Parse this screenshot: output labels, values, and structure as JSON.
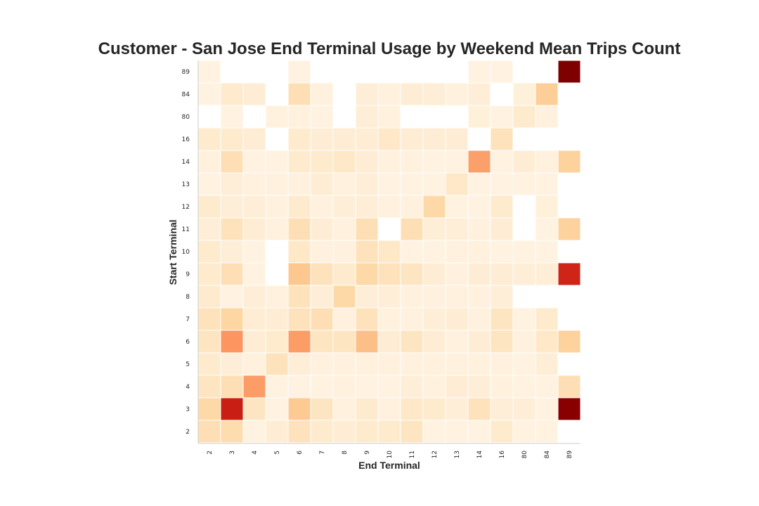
{
  "chart_data": {
    "type": "heatmap",
    "title": "Customer - San Jose End Terminal Usage by Weekend Mean Trips Count",
    "xlabel": "End Terminal",
    "ylabel": "Start Terminal",
    "x_categories": [
      "2",
      "3",
      "4",
      "5",
      "6",
      "7",
      "8",
      "9",
      "10",
      "11",
      "12",
      "13",
      "14",
      "16",
      "80",
      "84",
      "89"
    ],
    "y_categories": [
      "89",
      "84",
      "80",
      "16",
      "14",
      "13",
      "12",
      "11",
      "10",
      "9",
      "8",
      "7",
      "6",
      "5",
      "4",
      "3",
      "2"
    ],
    "colormap": "OrRd",
    "grid": false,
    "values": [
      [
        0.04,
        null,
        null,
        null,
        0.04,
        null,
        null,
        null,
        null,
        null,
        null,
        null,
        0.04,
        0.04,
        null,
        null,
        1.0
      ],
      [
        0.04,
        0.1,
        0.08,
        null,
        0.18,
        0.05,
        null,
        0.07,
        0.05,
        0.08,
        0.07,
        0.05,
        0.07,
        null,
        0.06,
        0.28,
        null
      ],
      [
        null,
        0.04,
        null,
        0.05,
        0.05,
        0.04,
        null,
        0.07,
        0.05,
        null,
        null,
        null,
        0.06,
        0.04,
        0.1,
        0.05,
        null
      ],
      [
        0.1,
        0.1,
        0.08,
        null,
        0.1,
        0.08,
        0.08,
        0.08,
        0.12,
        0.08,
        0.08,
        0.08,
        null,
        0.16,
        null,
        null,
        null
      ],
      [
        0.05,
        0.18,
        0.04,
        0.04,
        0.1,
        0.1,
        0.12,
        0.08,
        0.05,
        0.05,
        0.04,
        0.04,
        0.45,
        0.04,
        0.08,
        0.05,
        0.26
      ],
      [
        0.04,
        0.07,
        0.05,
        0.05,
        0.05,
        0.08,
        0.05,
        0.07,
        0.04,
        0.04,
        0.04,
        0.12,
        0.04,
        0.04,
        0.04,
        0.04,
        null
      ],
      [
        0.1,
        0.07,
        0.07,
        0.05,
        0.1,
        0.05,
        0.07,
        0.07,
        0.05,
        0.05,
        0.22,
        0.04,
        0.04,
        0.1,
        null,
        0.06,
        null
      ],
      [
        0.07,
        0.16,
        0.08,
        0.05,
        0.18,
        0.08,
        0.05,
        0.18,
        null,
        0.18,
        0.07,
        0.07,
        0.05,
        0.08,
        null,
        0.04,
        0.26
      ],
      [
        0.1,
        0.07,
        0.04,
        null,
        0.12,
        0.05,
        0.05,
        0.16,
        0.12,
        0.04,
        0.04,
        0.05,
        0.05,
        0.04,
        0.04,
        0.04,
        null
      ],
      [
        0.1,
        0.18,
        0.04,
        null,
        0.32,
        0.16,
        0.1,
        0.22,
        0.16,
        0.14,
        0.08,
        0.05,
        0.08,
        0.08,
        0.07,
        0.07,
        0.78
      ],
      [
        0.1,
        0.04,
        0.07,
        0.05,
        0.16,
        0.07,
        0.22,
        0.07,
        0.07,
        0.05,
        0.05,
        0.05,
        0.05,
        0.07,
        null,
        null,
        null
      ],
      [
        0.16,
        0.24,
        0.08,
        0.08,
        0.16,
        0.18,
        0.05,
        0.16,
        0.05,
        0.05,
        0.07,
        0.08,
        0.05,
        0.14,
        0.04,
        0.1,
        null
      ],
      [
        0.14,
        0.48,
        0.08,
        0.1,
        0.46,
        0.14,
        0.14,
        0.36,
        0.08,
        0.14,
        0.08,
        0.05,
        0.08,
        0.14,
        0.05,
        0.12,
        0.26
      ],
      [
        0.1,
        0.07,
        0.05,
        0.16,
        0.07,
        0.05,
        0.05,
        0.05,
        0.05,
        0.05,
        0.05,
        0.05,
        0.05,
        0.05,
        0.04,
        0.07,
        null
      ],
      [
        0.14,
        0.18,
        0.46,
        0.04,
        0.04,
        0.04,
        0.05,
        0.04,
        0.04,
        0.07,
        0.05,
        0.08,
        0.07,
        0.05,
        0.04,
        0.04,
        0.18
      ],
      [
        0.22,
        0.8,
        0.14,
        0.04,
        0.3,
        0.14,
        0.05,
        0.1,
        0.05,
        0.12,
        0.1,
        0.07,
        0.16,
        0.07,
        0.07,
        0.04,
        0.98
      ],
      [
        0.18,
        0.2,
        0.04,
        0.08,
        0.16,
        0.1,
        0.08,
        0.1,
        0.1,
        0.14,
        0.04,
        0.04,
        0.04,
        0.1,
        0.04,
        0.04,
        null
      ]
    ]
  }
}
